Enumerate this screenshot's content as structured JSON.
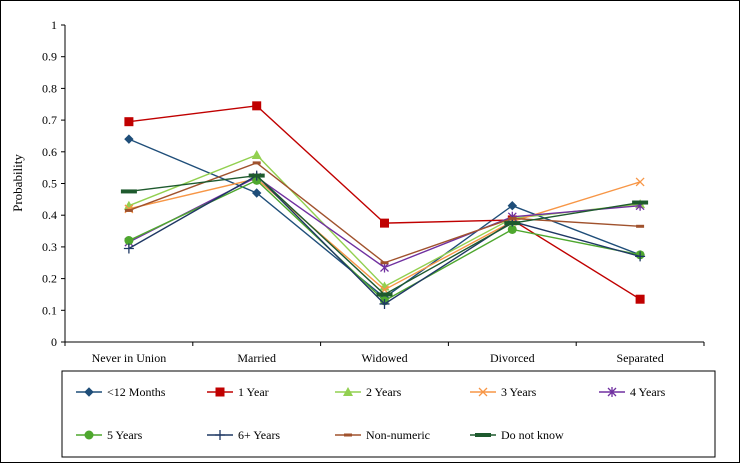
{
  "chart_data": {
    "type": "line",
    "title": "",
    "xlabel": "",
    "ylabel": "Probability",
    "ylim": [
      0,
      1
    ],
    "yticks": [
      "0",
      "0.1",
      "0.2",
      "0.3",
      "0.4",
      "0.5",
      "0.6",
      "0.7",
      "0.8",
      "0.9",
      "1"
    ],
    "categories": [
      "Never in Union",
      "Married",
      "Widowed",
      "Divorced",
      "Separated"
    ],
    "grid": false,
    "legend_position": "bottom",
    "series": [
      {
        "name": "<12 Months",
        "color": "#1f4e79",
        "marker": "diamond",
        "values": [
          0.64,
          0.47,
          0.14,
          0.43,
          0.275
        ]
      },
      {
        "name": "1 Year",
        "color": "#c00000",
        "marker": "square",
        "values": [
          0.695,
          0.745,
          0.375,
          0.385,
          0.135
        ]
      },
      {
        "name": "2 Years",
        "color": "#92d050",
        "marker": "triangle",
        "values": [
          0.43,
          0.59,
          0.175,
          0.39,
          0.435
        ]
      },
      {
        "name": "3 Years",
        "color": "#f79646",
        "marker": "x",
        "values": [
          0.42,
          0.515,
          0.165,
          0.38,
          0.505
        ]
      },
      {
        "name": "4 Years",
        "color": "#7030a0",
        "marker": "asterisk",
        "values": [
          0.315,
          0.52,
          0.235,
          0.395,
          0.43
        ]
      },
      {
        "name": "5 Years",
        "color": "#4ea72e",
        "marker": "circle",
        "values": [
          0.32,
          0.51,
          0.13,
          0.355,
          0.275
        ]
      },
      {
        "name": "6+ Years",
        "color": "#1f3864",
        "marker": "plus",
        "values": [
          0.295,
          0.525,
          0.12,
          0.38,
          0.27
        ]
      },
      {
        "name": "Non-numeric",
        "color": "#a0522d",
        "marker": "dash",
        "values": [
          0.415,
          0.565,
          0.25,
          0.39,
          0.365
        ]
      },
      {
        "name": "Do not know",
        "color": "#1e5a2e",
        "marker": "bar",
        "values": [
          0.475,
          0.525,
          0.15,
          0.375,
          0.44
        ]
      }
    ]
  }
}
